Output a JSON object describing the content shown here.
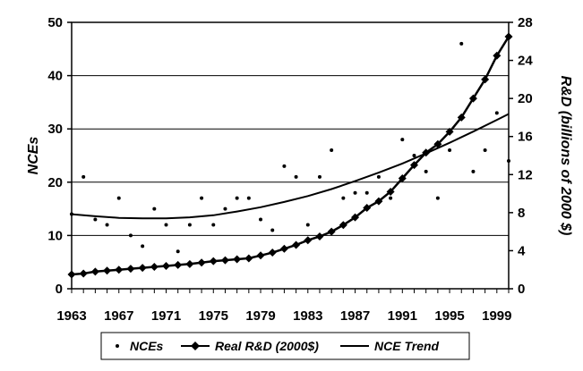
{
  "chart_data": {
    "type": "line",
    "xlabel": "",
    "ylabel_left": "NCEs",
    "ylabel_right": "R&D (billions of 2000 $)",
    "x_ticks": [
      "1963",
      "1967",
      "1971",
      "1975",
      "1979",
      "1983",
      "1987",
      "1991",
      "1995",
      "1999"
    ],
    "y_left_ticks": [
      "0",
      "10",
      "20",
      "30",
      "40",
      "50"
    ],
    "y_right_ticks": [
      "0",
      "4",
      "8",
      "12",
      "16",
      "20",
      "24",
      "28"
    ],
    "ylim_left": [
      0,
      50
    ],
    "ylim_right": [
      0,
      28
    ],
    "xlim": [
      1963,
      2000
    ],
    "grid": "horizontal",
    "legend_position": "bottom",
    "legend": [
      "NCEs",
      "Real R&D (2000$)",
      "NCE Trend"
    ],
    "series": [
      {
        "name": "NCEs",
        "style": "dots",
        "axis": "left",
        "x": [
          1963,
          1964,
          1965,
          1966,
          1967,
          1968,
          1969,
          1970,
          1971,
          1972,
          1973,
          1974,
          1975,
          1976,
          1977,
          1978,
          1979,
          1980,
          1981,
          1982,
          1983,
          1984,
          1985,
          1986,
          1987,
          1988,
          1989,
          1990,
          1991,
          1992,
          1993,
          1994,
          1995,
          1996,
          1997,
          1998,
          1999,
          2000
        ],
        "values": [
          14,
          21,
          13,
          12,
          17,
          10,
          8,
          15,
          12,
          7,
          12,
          17,
          12,
          15,
          17,
          17,
          13,
          11,
          23,
          21,
          12,
          21,
          26,
          17,
          18,
          18,
          21,
          17,
          28,
          25,
          22,
          17,
          26,
          46,
          22,
          26,
          33,
          24
        ]
      },
      {
        "name": "Real R&D (2000$)",
        "style": "line-diamond",
        "axis": "right",
        "x": [
          1963,
          1964,
          1965,
          1966,
          1967,
          1968,
          1969,
          1970,
          1971,
          1972,
          1973,
          1974,
          1975,
          1976,
          1977,
          1978,
          1979,
          1980,
          1981,
          1982,
          1983,
          1984,
          1985,
          1986,
          1987,
          1988,
          1989,
          1990,
          1991,
          1992,
          1993,
          1994,
          1995,
          1996,
          1997,
          1998,
          1999,
          2000
        ],
        "values": [
          1.5,
          1.6,
          1.8,
          1.9,
          2.0,
          2.1,
          2.2,
          2.3,
          2.4,
          2.5,
          2.6,
          2.75,
          2.9,
          3.0,
          3.1,
          3.2,
          3.5,
          3.8,
          4.2,
          4.6,
          5.1,
          5.5,
          6.0,
          6.7,
          7.5,
          8.5,
          9.2,
          10.2,
          11.6,
          13.0,
          14.3,
          15.2,
          16.5,
          18.0,
          20.0,
          22.0,
          24.5,
          26.5
        ]
      },
      {
        "name": "NCE Trend",
        "style": "line",
        "axis": "left",
        "x": [
          1963,
          1965,
          1967,
          1969,
          1971,
          1973,
          1975,
          1977,
          1979,
          1981,
          1983,
          1985,
          1987,
          1989,
          1991,
          1993,
          1995,
          1997,
          1999,
          2000
        ],
        "values": [
          14.0,
          13.6,
          13.3,
          13.2,
          13.2,
          13.4,
          13.8,
          14.5,
          15.3,
          16.3,
          17.4,
          18.7,
          20.2,
          21.8,
          23.5,
          25.4,
          27.4,
          29.5,
          31.7,
          32.8
        ]
      }
    ]
  }
}
